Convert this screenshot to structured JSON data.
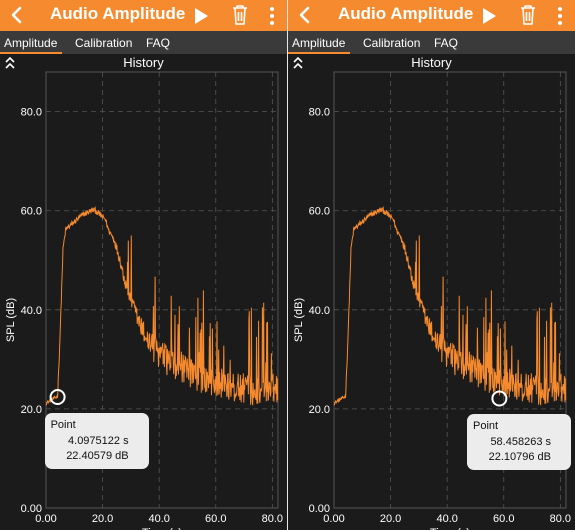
{
  "app": {
    "title": "Audio Amplitude"
  },
  "tabs": [
    {
      "label": "Amplitude"
    },
    {
      "label": "Calibration"
    },
    {
      "label": "FAQ"
    }
  ],
  "section_title": "History",
  "icons": {
    "back": "chevron-left-icon",
    "play": "play-icon",
    "delete": "trash-icon",
    "more": "more-vertical-icon",
    "collapse": "double-chevron-up-icon"
  },
  "colors": {
    "accent": "#f58a2e",
    "trace": "#f58a2e",
    "background": "#1b1b1b",
    "tabbar": "#3a3a3a"
  },
  "panels": [
    {
      "point": {
        "label": "Point",
        "x_text": "4.0975122  s",
        "y_text": "22.40579 dB",
        "x": 4.0975122,
        "y": 22.40579
      }
    },
    {
      "point": {
        "label": "Point",
        "x_text": "58.458263  s",
        "y_text": "22.10796 dB",
        "x": 58.458263,
        "y": 22.10796
      }
    }
  ],
  "chart_data": {
    "type": "line",
    "xlabel": "Time (s)",
    "ylabel": "SPL (dB)",
    "xlim": [
      0,
      82
    ],
    "ylim": [
      0,
      88
    ],
    "x_ticks": [
      "0.00",
      "20.0",
      "40.0",
      "60.0",
      "80.0"
    ],
    "y_ticks": [
      "0.00",
      "20.0",
      "40.0",
      "60.0",
      "80.0"
    ],
    "grid": true,
    "series": [
      {
        "x": [
          0,
          3,
          4.1,
          5,
          6,
          7,
          9,
          11,
          13,
          15,
          17,
          19,
          21,
          22,
          24,
          26,
          28,
          30,
          32,
          34,
          36,
          38,
          40,
          42,
          44,
          46,
          48,
          50,
          52,
          54,
          56,
          58,
          60,
          62,
          64,
          66,
          68,
          70,
          72,
          74,
          76,
          78,
          80,
          82
        ],
        "y": [
          21,
          22,
          22.4,
          35,
          52,
          56,
          57,
          58,
          59,
          59.5,
          60,
          59,
          58,
          56,
          54,
          50,
          45,
          41,
          38,
          35,
          33,
          31,
          30,
          29,
          28,
          27,
          27,
          26,
          26,
          25,
          25,
          24,
          24,
          24,
          23.5,
          23,
          23,
          23,
          22.5,
          22.5,
          23,
          23,
          23,
          23
        ]
      }
    ]
  }
}
